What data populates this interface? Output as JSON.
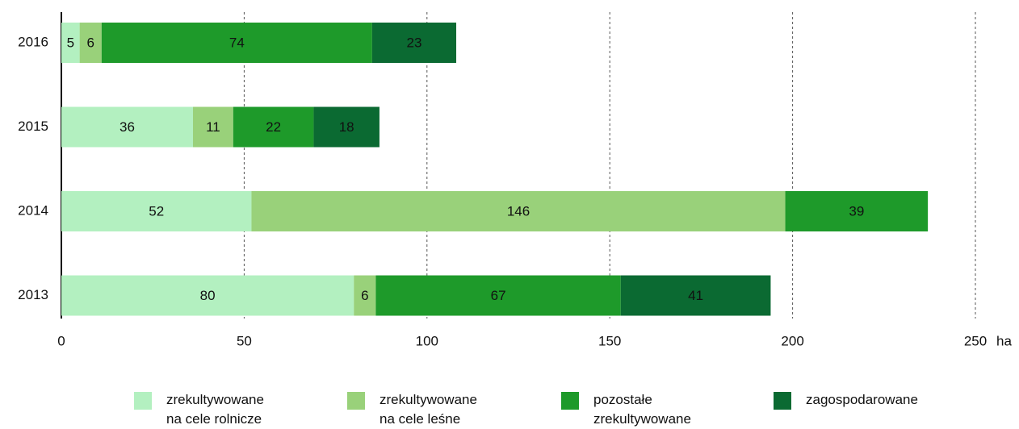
{
  "chart_data": {
    "type": "stacked-barh",
    "categories": [
      "2016",
      "2015",
      "2014",
      "2013"
    ],
    "series": [
      {
        "name": "zrekultywowane na cele rolnicze",
        "color": "#b3f0c0",
        "values": [
          5,
          36,
          52,
          80
        ]
      },
      {
        "name": "zrekultywowane na cele leśne",
        "color": "#99d17a",
        "values": [
          6,
          11,
          146,
          6
        ]
      },
      {
        "name": "pozostałe zrekultywowane",
        "color": "#1e9a2a",
        "values": [
          74,
          22,
          39,
          67
        ]
      },
      {
        "name": "zagospodarowane",
        "color": "#0b6a32",
        "values": [
          23,
          18,
          null,
          41
        ]
      }
    ],
    "x_label": "ha",
    "xlim": [
      0,
      250
    ],
    "xticks": [
      0,
      50,
      100,
      150,
      200,
      250
    ],
    "grid": true,
    "legend": "bottom"
  }
}
